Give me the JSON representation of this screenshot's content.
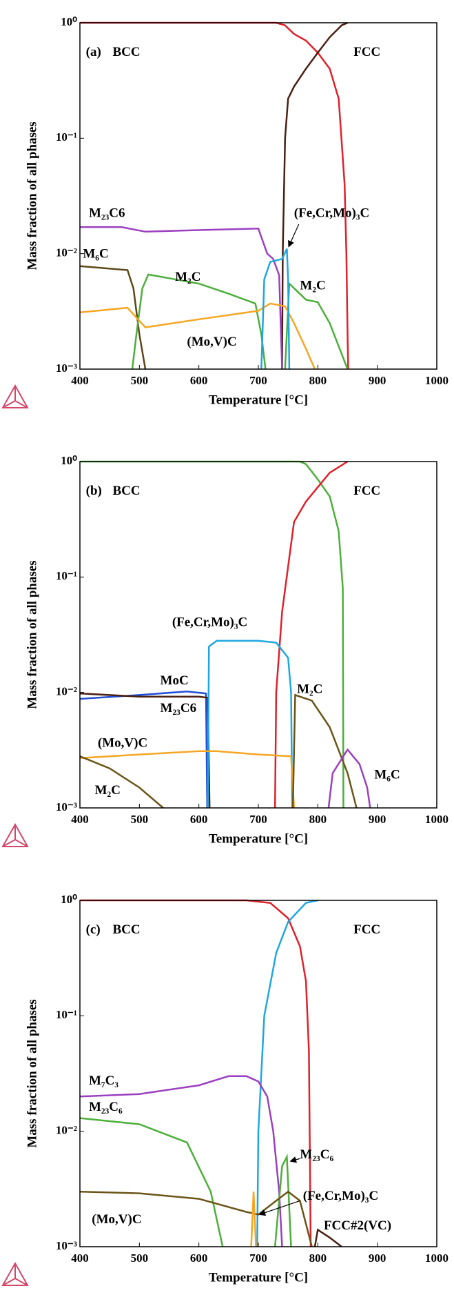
{
  "chart_data": [
    {
      "type": "line",
      "xlabel": "Temperature [°C]",
      "ylabel": "Mass fraction of all phases",
      "log_y": true,
      "xlim": [
        400,
        1000
      ],
      "xticks": [
        400,
        500,
        600,
        700,
        800,
        900,
        1000
      ],
      "ylim": [
        0.001,
        1
      ],
      "yticks": [
        {
          "value": 0.001,
          "label": "10⁻³"
        },
        {
          "value": 0.01,
          "label": "10⁻²"
        },
        {
          "value": 0.1,
          "label": "10⁻¹"
        },
        {
          "value": 1,
          "label": "10⁰"
        }
      ],
      "labels": [
        "(a)",
        "BCC",
        "FCC",
        "M₂₃C6",
        "M₆C",
        "M₂C",
        "(Mo,V)C",
        "(Fe,Cr,Mo)₃C",
        "M₂C"
      ],
      "series": [
        {
          "color": "#e0202a",
          "x": [
            400,
            730,
            745,
            760,
            780,
            800,
            820,
            835,
            845,
            848,
            850,
            851
          ],
          "values": [
            1,
            1,
            0.95,
            0.8,
            0.7,
            0.55,
            0.4,
            0.22,
            0.04,
            0.01,
            0.002,
            0.001
          ]
        },
        {
          "color": "#4a1f14",
          "x": [
            740,
            741,
            745,
            750,
            760,
            780,
            800,
            820,
            840,
            850
          ],
          "values": [
            0.001,
            0.01,
            0.1,
            0.22,
            0.28,
            0.4,
            0.55,
            0.75,
            0.95,
            1
          ]
        },
        {
          "color": "#9b3fc0",
          "x": [
            400,
            470,
            510,
            600,
            700,
            715,
            725,
            735,
            740
          ],
          "values": [
            0.017,
            0.017,
            0.0155,
            0.016,
            0.0165,
            0.01,
            0.009,
            0.0065,
            0.001
          ]
        },
        {
          "color": "#5c4616",
          "x": [
            400,
            480,
            490,
            500,
            510
          ],
          "values": [
            0.0078,
            0.0072,
            0.005,
            0.002,
            0.001
          ]
        },
        {
          "color": "#4caf3a",
          "x": [
            488,
            495,
            505,
            515,
            600,
            650,
            695,
            705,
            712,
            730,
            745,
            752,
            780,
            800,
            820,
            850
          ],
          "values": [
            0.001,
            0.002,
            0.005,
            0.0066,
            0.0055,
            0.0045,
            0.0037,
            0.002,
            0.001,
            null,
            0.001,
            0.0055,
            0.004,
            0.0038,
            0.0025,
            0.001
          ]
        },
        {
          "color": "#f5a623",
          "x": [
            400,
            480,
            510,
            600,
            700,
            720,
            745,
            760,
            780,
            795
          ],
          "values": [
            0.0031,
            0.0034,
            0.0023,
            0.0027,
            0.0032,
            0.0037,
            0.0035,
            0.0025,
            0.0015,
            0.001
          ]
        },
        {
          "color": "#1ea7df",
          "x": [
            705,
            710,
            720,
            740,
            748,
            750,
            752
          ],
          "values": [
            0.001,
            0.006,
            0.0085,
            0.009,
            0.011,
            0.006,
            0.001
          ]
        }
      ]
    },
    {
      "type": "line",
      "xlabel": "Temperature [°C]",
      "ylabel": "Mass fraction of all phases",
      "log_y": true,
      "xlim": [
        400,
        1000
      ],
      "xticks": [
        400,
        500,
        600,
        700,
        800,
        900,
        1000
      ],
      "ylim": [
        0.001,
        1
      ],
      "yticks": [
        {
          "value": 0.001,
          "label": "10⁻³"
        },
        {
          "value": 0.01,
          "label": "10⁻²"
        },
        {
          "value": 0.1,
          "label": "10⁻¹"
        },
        {
          "value": 1,
          "label": "10⁰"
        }
      ],
      "labels": [
        "(b)",
        "BCC",
        "FCC",
        "(Fe,Cr,Mo)₃C",
        "MoC",
        "M₂₃C6",
        "(Mo,V)C",
        "M₂C",
        "M₂C",
        "M₆C"
      ],
      "series": [
        {
          "color": "#4caf3a",
          "x": [
            400,
            770,
            780,
            800,
            820,
            835,
            842,
            843
          ],
          "values": [
            1,
            1,
            0.95,
            0.7,
            0.5,
            0.25,
            0.08,
            0.001
          ]
        },
        {
          "color": "#e0202a",
          "x": [
            728,
            730,
            740,
            760,
            780,
            800,
            820,
            850
          ],
          "values": [
            0.001,
            0.01,
            0.05,
            0.3,
            0.45,
            0.6,
            0.8,
            1
          ]
        },
        {
          "color": "#1f4fd6",
          "x": [
            400,
            500,
            580,
            612,
            614
          ],
          "values": [
            0.0088,
            0.0095,
            0.0102,
            0.0098,
            0.001
          ]
        },
        {
          "color": "#4a1f14",
          "x": [
            400,
            500,
            600,
            615,
            618
          ],
          "values": [
            0.0098,
            0.0092,
            0.0092,
            0.009,
            0.001
          ]
        },
        {
          "color": "#1ea7df",
          "x": [
            615,
            617,
            630,
            700,
            730,
            750,
            755,
            757
          ],
          "values": [
            0.001,
            0.025,
            0.028,
            0.028,
            0.027,
            0.02,
            0.01,
            0.001
          ]
        },
        {
          "color": "#f5a623",
          "x": [
            400,
            500,
            600,
            630,
            700,
            755,
            760
          ],
          "values": [
            0.0027,
            0.0029,
            0.0031,
            0.0031,
            0.0029,
            0.0028,
            0.001
          ]
        },
        {
          "color": "#6b5417",
          "x": [
            400,
            450,
            500,
            540,
            650,
            758,
            762,
            790,
            820,
            850,
            865
          ],
          "values": [
            0.0028,
            0.0022,
            0.0015,
            0.001,
            null,
            0.001,
            0.0095,
            0.0085,
            0.005,
            0.002,
            0.001
          ]
        },
        {
          "color": "#9b3fc0",
          "x": [
            818,
            825,
            850,
            870,
            883,
            888
          ],
          "values": [
            0.001,
            0.002,
            0.0032,
            0.0024,
            0.0015,
            0.001
          ]
        }
      ]
    },
    {
      "type": "line",
      "xlabel": "Temperature [°C]",
      "ylabel": "Mass fraction of all phases",
      "log_y": true,
      "xlim": [
        400,
        1000
      ],
      "xticks": [
        400,
        500,
        600,
        700,
        800,
        900,
        1000
      ],
      "ylim": [
        0.001,
        1
      ],
      "yticks": [
        {
          "value": 0.001,
          "label": "10⁻³"
        },
        {
          "value": 0.01,
          "label": "10⁻²"
        },
        {
          "value": 0.1,
          "label": "10⁻¹"
        },
        {
          "value": 1,
          "label": "10⁰"
        }
      ],
      "labels": [
        "(c)",
        "BCC",
        "FCC",
        "M₇C₃",
        "M₂₃C₆",
        "M₂₃C₆",
        "(Mo,V)C",
        "(Fe,Cr,Mo)₃C",
        "FCC#2(VC)"
      ],
      "series": [
        {
          "color": "#e0202a",
          "x": [
            400,
            680,
            720,
            750,
            770,
            780,
            785,
            788
          ],
          "values": [
            1,
            1,
            0.95,
            0.7,
            0.4,
            0.2,
            0.05,
            0.001
          ]
        },
        {
          "color": "#1ea7df",
          "x": [
            698,
            700,
            710,
            730,
            750,
            780,
            800
          ],
          "values": [
            0.001,
            0.01,
            0.1,
            0.35,
            0.65,
            0.95,
            1
          ]
        },
        {
          "color": "#9b3fc0",
          "x": [
            400,
            500,
            600,
            650,
            680,
            700,
            715,
            725,
            735,
            740
          ],
          "values": [
            0.02,
            0.021,
            0.025,
            0.03,
            0.03,
            0.027,
            0.02,
            0.01,
            0.003,
            0.001
          ]
        },
        {
          "color": "#4caf3a",
          "x": [
            400,
            500,
            580,
            620,
            640,
            700,
            728,
            740,
            748,
            755
          ],
          "values": [
            0.013,
            0.0115,
            0.008,
            0.003,
            0.001,
            null,
            0.001,
            0.005,
            0.006,
            0.001
          ]
        },
        {
          "color": "#6b5417",
          "x": [
            400,
            500,
            600,
            680,
            700,
            730,
            750,
            770,
            790
          ],
          "values": [
            0.003,
            0.0029,
            0.0026,
            0.002,
            0.0019,
            0.0025,
            0.003,
            0.0025,
            0.001
          ]
        },
        {
          "color": "#f5a623",
          "x": [
            688,
            692,
            696
          ],
          "values": [
            0.001,
            0.003,
            0.001
          ]
        },
        {
          "color": "#4a1f14",
          "x": [
            795,
            800,
            820,
            840
          ],
          "values": [
            0.001,
            0.0014,
            0.0012,
            0.001
          ]
        }
      ]
    }
  ]
}
